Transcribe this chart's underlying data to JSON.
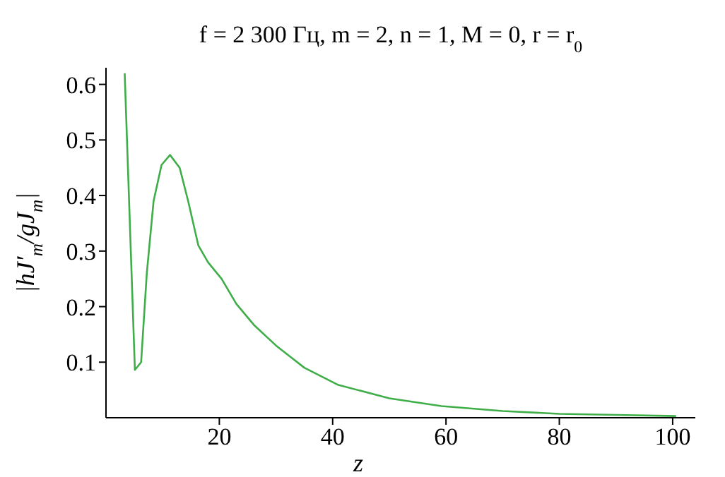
{
  "chart_data": {
    "type": "line",
    "title": "f = 2 300 Гц, m = 2, n = 1, M = 0, r = r$_{0}$",
    "xlabel": "z",
    "ylabel": "|hJ′$_{m}$/gJ$_{m}$|",
    "x": [
      3.3,
      5.1,
      6.2,
      7.2,
      8.4,
      9.8,
      11.3,
      13,
      14.5,
      16.3,
      18,
      20.4,
      23,
      26.2,
      30,
      35,
      41,
      50,
      59.2,
      70,
      80,
      90,
      100.6
    ],
    "series": [
      {
        "color": "#3fae49",
        "values": [
          0.62,
          0.086,
          0.1,
          0.26,
          0.39,
          0.455,
          0.473,
          0.45,
          0.39,
          0.31,
          0.28,
          0.25,
          0.205,
          0.166,
          0.13,
          0.09,
          0.059,
          0.035,
          0.021,
          0.012,
          0.007,
          0.005,
          0.003
        ]
      }
    ],
    "xlim": [
      0,
      104
    ],
    "xticks": [
      20,
      40,
      60,
      80,
      100
    ],
    "ylim": [
      0,
      0.63
    ],
    "yticks": [
      0.1,
      0.2,
      0.3,
      0.4,
      0.5,
      0.6
    ],
    "grid": false,
    "legend": false,
    "marker": "none",
    "line_style": "solid"
  }
}
